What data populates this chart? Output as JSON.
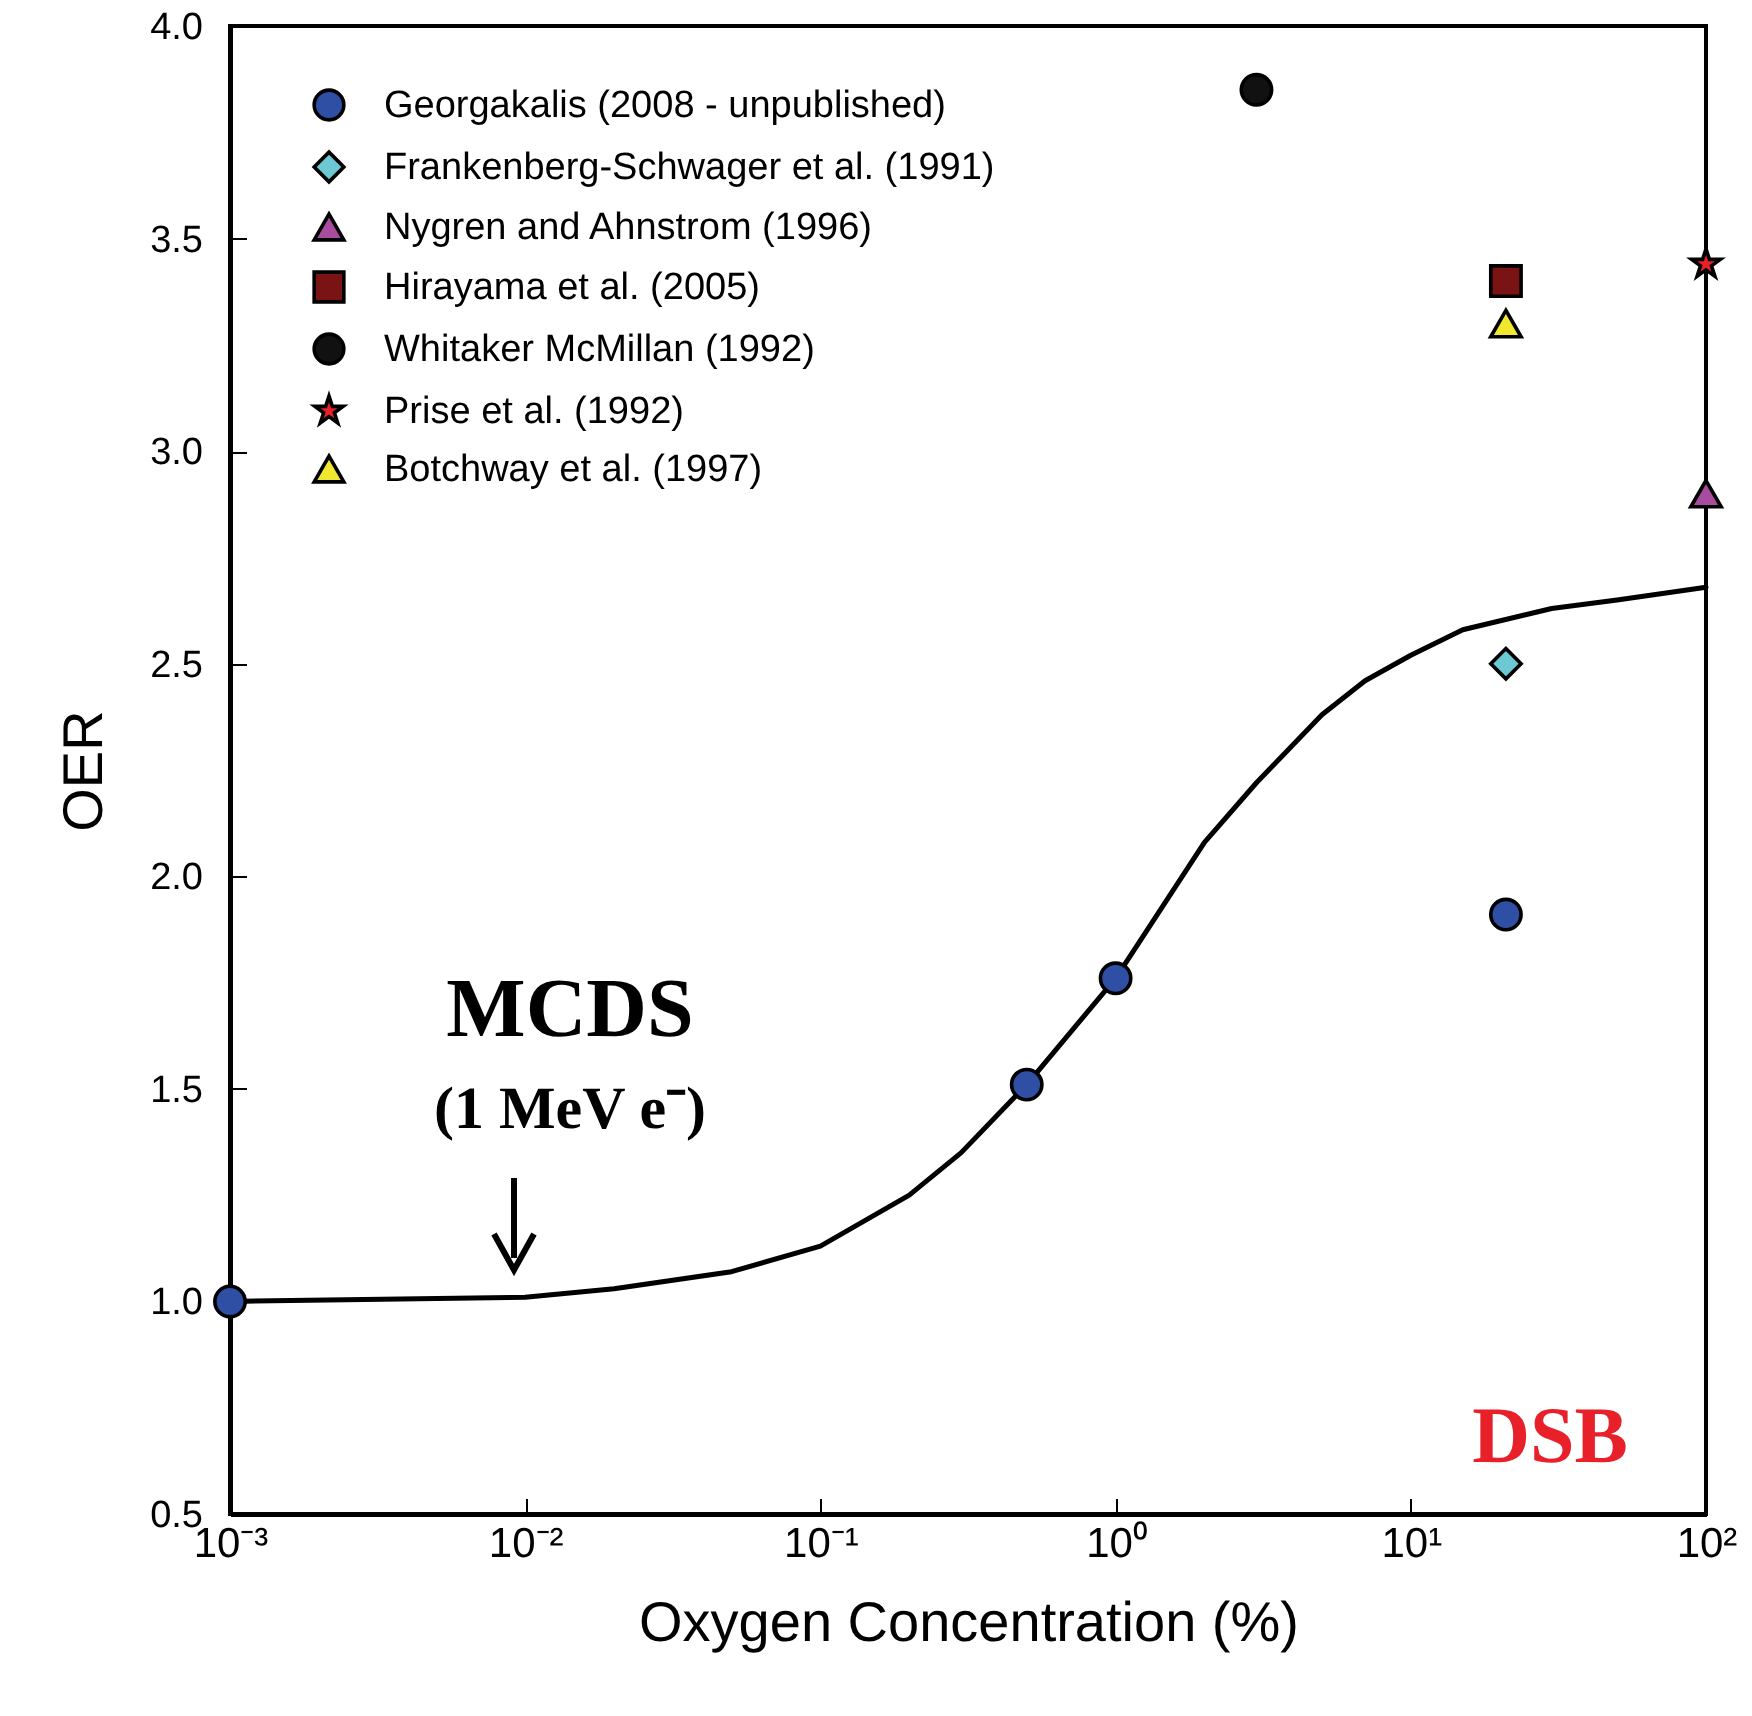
{
  "chart_data": {
    "type": "scatter",
    "xlabel": "Oxygen Concentration (%)",
    "ylabel": "OER",
    "log": "x",
    "xlim": [
      0.001,
      100
    ],
    "xticks": [
      {
        "value": 0.001,
        "label": "10⁻³"
      },
      {
        "value": 0.01,
        "label": "10⁻²"
      },
      {
        "value": 0.1,
        "label": "10⁻¹"
      },
      {
        "value": 1,
        "label": "10⁰"
      },
      {
        "value": 10,
        "label": "10¹"
      },
      {
        "value": 100,
        "label": "10²"
      }
    ],
    "ylim": [
      0.5,
      4.0
    ],
    "yticks": [
      {
        "value": 0.5,
        "label": "0.5"
      },
      {
        "value": 1,
        "label": "1.0"
      },
      {
        "value": 1.5,
        "label": "1.5"
      },
      {
        "value": 2,
        "label": "2.0"
      },
      {
        "value": 2.5,
        "label": "2.5"
      },
      {
        "value": 3,
        "label": "3.0"
      },
      {
        "value": 3.5,
        "label": "3.5"
      },
      {
        "value": 4,
        "label": "4.0"
      }
    ],
    "grid": false,
    "legend": "top left",
    "annotations": [
      "MCDS",
      "(1 MeV e⁻)",
      "DSB"
    ],
    "series": [
      {
        "type": "line",
        "color": "#000000",
        "marker": "none",
        "line_style": "solid",
        "x": [
          0.001,
          0.01,
          0.02,
          0.05,
          0.1,
          0.2,
          0.3,
          0.5,
          1,
          2,
          3,
          5,
          7,
          10,
          15,
          30,
          50,
          100
        ],
        "values": [
          1.0,
          1.01,
          1.03,
          1.07,
          1.13,
          1.25,
          1.35,
          1.51,
          1.76,
          2.08,
          2.22,
          2.38,
          2.46,
          2.52,
          2.58,
          2.63,
          2.65,
          2.68
        ]
      },
      {
        "name": "Georgakalis (2008 - unpublished)",
        "color": "#2e4fa3",
        "marker": "circle",
        "x": [
          0.001,
          0.5,
          1,
          21
        ],
        "values": [
          1.0,
          1.51,
          1.76,
          1.91
        ]
      },
      {
        "name": "Frankenberg-Schwager et al. (1991)",
        "color": "#6cc9d3",
        "marker": "diamond",
        "x": [
          21
        ],
        "values": [
          2.5
        ]
      },
      {
        "name": "Nygren and Ahnstrom (1996)",
        "color": "#a84ca0",
        "marker": "triangle",
        "x": [
          100
        ],
        "values": [
          2.9
        ]
      },
      {
        "name": "Hirayama et al. (2005)",
        "color": "#7a1414",
        "marker": "square",
        "x": [
          21
        ],
        "values": [
          3.4
        ]
      },
      {
        "name": "Whitaker McMillan (1992)",
        "color": "#111111",
        "marker": "circle",
        "x": [
          3
        ],
        "values": [
          3.85
        ]
      },
      {
        "name": "Prise et al. (1992)",
        "color": "#e8202a",
        "marker": "star",
        "x": [
          100
        ],
        "values": [
          3.44
        ]
      },
      {
        "name": "Botchway et al. (1997)",
        "color": "#f0e830",
        "marker": "triangle",
        "x": [
          21
        ],
        "values": [
          3.3
        ]
      }
    ]
  }
}
